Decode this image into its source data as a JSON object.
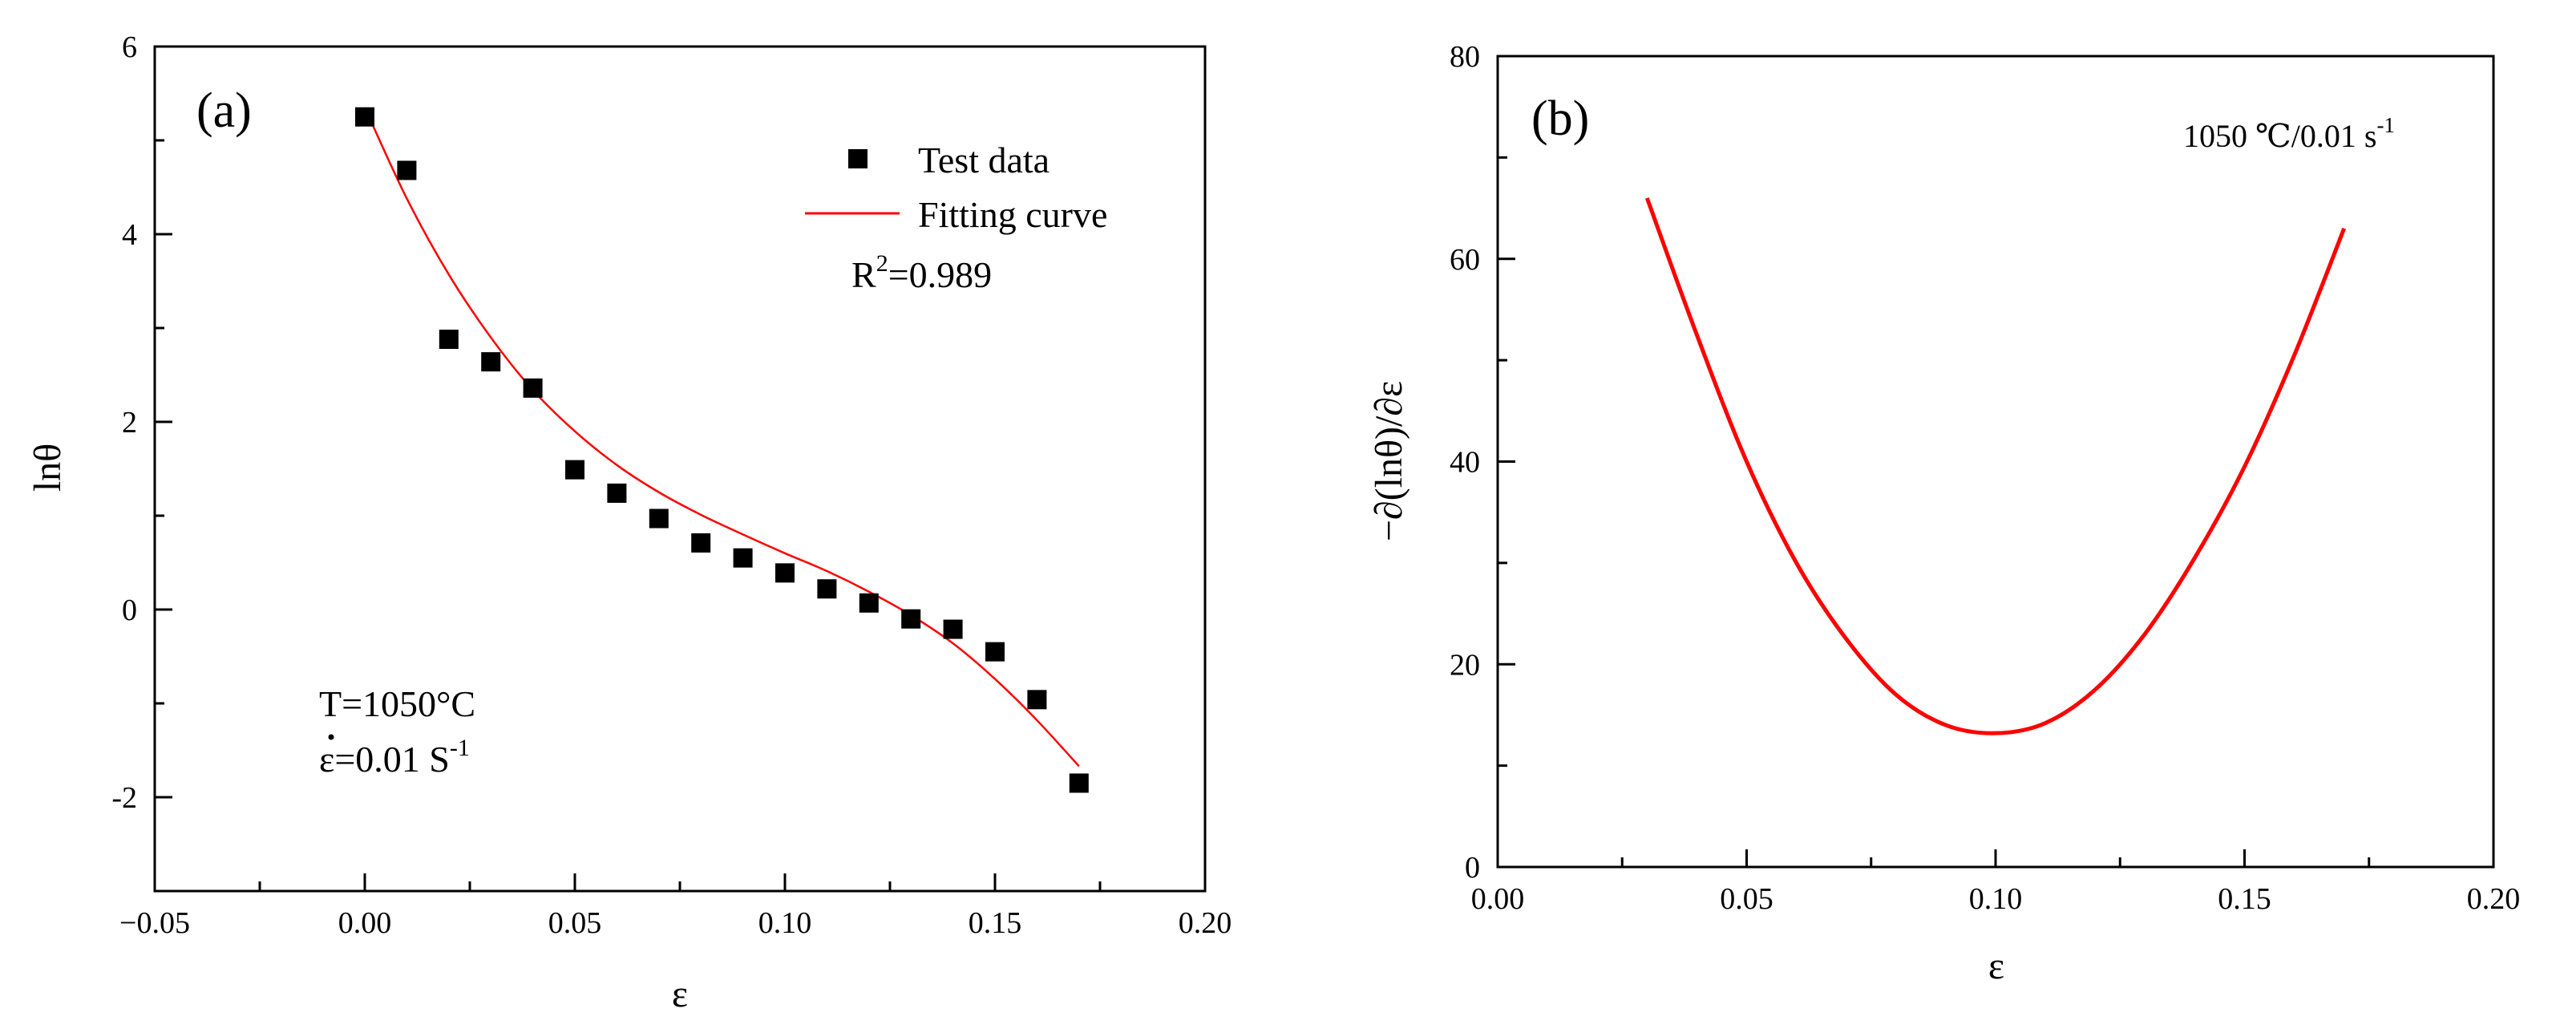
{
  "chart_data": [
    {
      "type": "scatter",
      "panel_label": "(a)",
      "xlabel": "ε",
      "ylabel": "lnθ",
      "xlim": [
        -0.05,
        0.2
      ],
      "ylim": [
        -3,
        6
      ],
      "xticks": [
        -0.05,
        0.0,
        0.05,
        0.1,
        0.15,
        0.2
      ],
      "xtick_labels": [
        "−0.05",
        "0.00",
        "0.05",
        "0.10",
        "0.15",
        "0.20"
      ],
      "yticks": [
        -2,
        0,
        2,
        4,
        6
      ],
      "ytick_labels": [
        "-2",
        "0",
        "2",
        "4",
        "6"
      ],
      "series": [
        {
          "name": "Test data",
          "kind": "scatter",
          "color": "#000000",
          "x": [
            0.0,
            0.01,
            0.02,
            0.03,
            0.04,
            0.05,
            0.06,
            0.07,
            0.08,
            0.09,
            0.1,
            0.11,
            0.12,
            0.13,
            0.14,
            0.15,
            0.16,
            0.17
          ],
          "y": [
            5.25,
            4.68,
            2.88,
            2.64,
            2.36,
            1.49,
            1.24,
            0.97,
            0.71,
            0.55,
            0.39,
            0.22,
            0.07,
            -0.1,
            -0.21,
            -0.45,
            -0.96,
            -1.85
          ]
        },
        {
          "name": "Fitting curve",
          "kind": "line",
          "color": "#ff0000",
          "x": [
            0.0,
            0.01,
            0.02,
            0.03,
            0.04,
            0.05,
            0.06,
            0.07,
            0.08,
            0.09,
            0.1,
            0.11,
            0.12,
            0.13,
            0.14,
            0.15,
            0.16,
            0.17
          ],
          "y": [
            5.35,
            4.38,
            3.57,
            2.9,
            2.34,
            1.9,
            1.54,
            1.25,
            1.01,
            0.8,
            0.6,
            0.41,
            0.19,
            -0.06,
            -0.36,
            -0.74,
            -1.18,
            -1.67
          ]
        }
      ],
      "legend": {
        "entries": [
          "Test data",
          "Fitting curve"
        ],
        "placement": "top-right"
      },
      "annotations": {
        "r2": {
          "base": "R",
          "sup": "2",
          "rest": "=0.989"
        },
        "temperature": "T=1050°C",
        "strain_rate": {
          "base": "ε=0.01 S",
          "sup": "-1"
        }
      }
    },
    {
      "type": "line",
      "panel_label": "(b)",
      "xlabel": "ε",
      "ylabel": "−∂(lnθ)/∂ε",
      "xlim": [
        0.0,
        0.2
      ],
      "ylim": [
        0,
        80
      ],
      "xticks": [
        0.0,
        0.05,
        0.1,
        0.15,
        0.2
      ],
      "xtick_labels": [
        "0.00",
        "0.05",
        "0.10",
        "0.15",
        "0.20"
      ],
      "yticks": [
        0,
        20,
        40,
        60,
        80
      ],
      "ytick_labels": [
        "0",
        "20",
        "40",
        "60",
        "80"
      ],
      "series": [
        {
          "name": "−∂(lnθ)/∂ε",
          "kind": "line",
          "color": "#ff0000",
          "x": [
            0.03,
            0.04,
            0.05,
            0.06,
            0.07,
            0.08,
            0.09,
            0.1,
            0.11,
            0.12,
            0.13,
            0.14,
            0.15,
            0.16,
            0.17
          ],
          "y": [
            66.0,
            52.5,
            40.0,
            30.0,
            22.5,
            17.0,
            14.0,
            13.2,
            14.2,
            17.5,
            23.0,
            30.5,
            39.5,
            50.5,
            63.0
          ]
        }
      ],
      "annotations": {
        "condition": {
          "base": "1050 ℃/0.01 s",
          "sup": "-1"
        }
      }
    }
  ]
}
